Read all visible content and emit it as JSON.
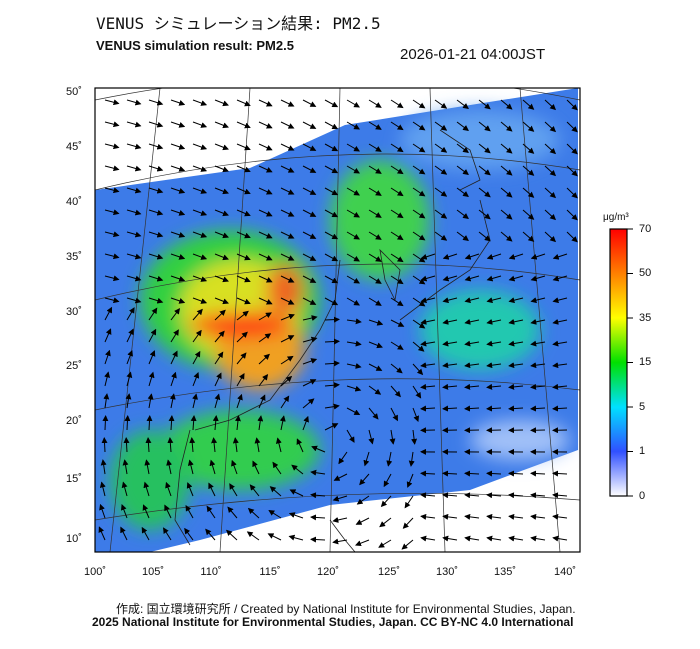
{
  "header": {
    "title_ja": "VENUS シミュレーション結果: PM2.5",
    "title_en": "VENUS simulation result: PM2.5",
    "timestamp": "2026-01-21 04:00JST"
  },
  "map": {
    "lat_labels": [
      "50˚",
      "45˚",
      "40˚",
      "35˚",
      "30˚",
      "25˚",
      "20˚",
      "15˚",
      "10˚"
    ],
    "lon_labels": [
      "100˚",
      "105˚",
      "110˚",
      "115˚",
      "120˚",
      "125˚",
      "130˚",
      "135˚",
      "140˚"
    ]
  },
  "colorbar": {
    "unit": "μg/m³",
    "ticks": [
      "70",
      "50",
      "35",
      "15",
      "5",
      "1",
      "0"
    ],
    "colors": [
      "#ffffff",
      "#3050ff",
      "#00e0ff",
      "#00e000",
      "#ffff00",
      "#ff8000",
      "#ff0000"
    ]
  },
  "footer": {
    "line1": "作成: 国立環境研究所 / Created by National Institute for Environmental Studies, Japan.",
    "line2": "2025 National Institute for Environmental Studies, Japan. CC BY-NC 4.0 International"
  }
}
